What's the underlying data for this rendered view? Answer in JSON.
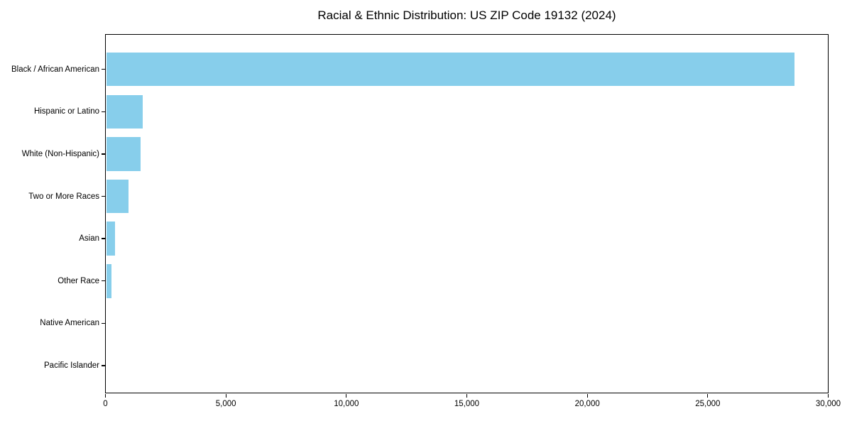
{
  "chart_data": {
    "type": "bar",
    "orientation": "horizontal",
    "title": "Racial & Ethnic Distribution: US ZIP Code 19132 (2024)",
    "categories": [
      "Black / African American",
      "Hispanic or Latino",
      "White (Non-Hispanic)",
      "Two or More Races",
      "Asian",
      "Other Race",
      "Native American",
      "Pacific Islander"
    ],
    "values": [
      28560,
      1510,
      1440,
      940,
      375,
      230,
      0,
      0
    ],
    "xlabel": "",
    "ylabel": "",
    "xlim": [
      0,
      30000
    ],
    "x_tick_values": [
      0,
      5000,
      10000,
      15000,
      20000,
      25000,
      30000
    ],
    "x_tick_labels": [
      "0",
      "5,000",
      "10,000",
      "15,000",
      "20,000",
      "25,000",
      "30,000"
    ],
    "grid": false,
    "legend": "none",
    "colors": {
      "bar": "#87CEEB",
      "axis": "#000000",
      "text": "#000000",
      "background": "#FFFFFF"
    }
  }
}
